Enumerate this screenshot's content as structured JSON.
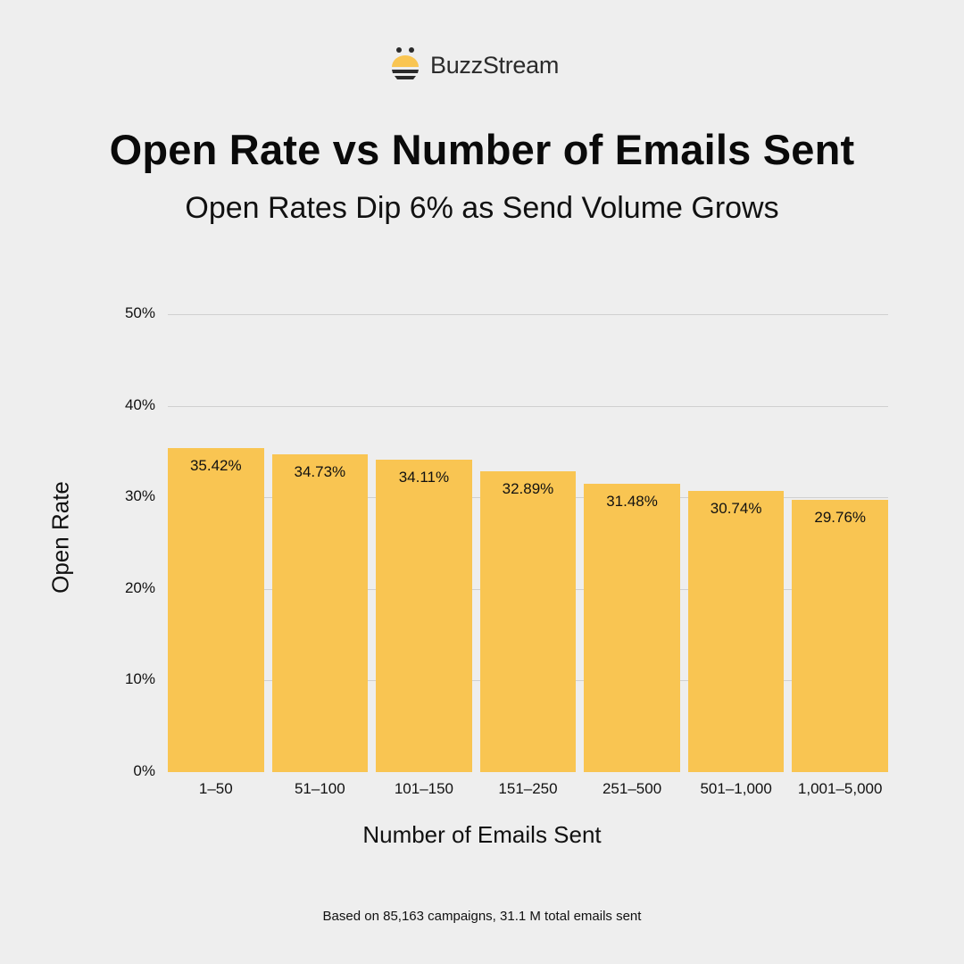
{
  "brand": {
    "name": "BuzzStream",
    "icon": "bee-icon",
    "accent": "#f9c552"
  },
  "header": {
    "title": "Open Rate vs Number of Emails Sent",
    "subtitle": "Open Rates Dip 6% as Send Volume Grows"
  },
  "footnote": "Based on 85,163 campaigns, 31.1 M total emails sent",
  "chart_data": {
    "type": "bar",
    "title": "Open Rate vs Number of Emails Sent",
    "subtitle": "Open Rates Dip 6% as Send Volume Grows",
    "xlabel": "Number of Emails Sent",
    "ylabel": "Open Rate",
    "ylim": [
      0,
      50
    ],
    "yticks": [
      "0%",
      "10%",
      "20%",
      "30%",
      "40%",
      "50%"
    ],
    "grid": true,
    "legend": null,
    "bar_color": "#f9c552",
    "categories": [
      "1–50",
      "51–100",
      "101–150",
      "151–250",
      "251–500",
      "501–1,000",
      "1,001–5,000"
    ],
    "values": [
      35.42,
      34.73,
      34.11,
      32.89,
      31.48,
      30.74,
      29.76
    ],
    "data_labels": [
      "35.42%",
      "34.73%",
      "34.11%",
      "32.89%",
      "31.48%",
      "30.74%",
      "29.76%"
    ],
    "annotation": "Based on 85,163 campaigns, 31.1 M total emails sent"
  }
}
